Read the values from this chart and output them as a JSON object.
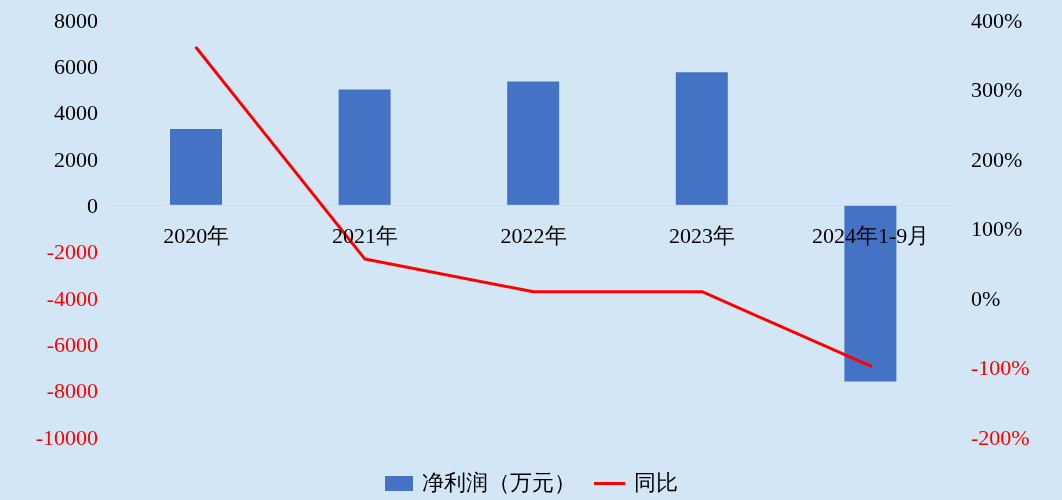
{
  "chart_data": {
    "type": "bar",
    "categories": [
      "2020年",
      "2021年",
      "2022年",
      "2023年",
      "2024年1-9月"
    ],
    "series": [
      {
        "name": "净利润（万元）",
        "color": "#4472c4",
        "values": [
          3300,
          5000,
          5350,
          5750,
          -7600
        ]
      },
      {
        "name": "同比",
        "type": "line",
        "axis": "y2",
        "color": "#ff0000",
        "values": [
          360,
          56,
          9,
          9,
          -98
        ]
      }
    ],
    "ylim": [
      -10000,
      8000
    ],
    "yticks": [
      -10000,
      -8000,
      -6000,
      -4000,
      -2000,
      0,
      2000,
      4000,
      6000,
      8000
    ],
    "y2lim": [
      -200,
      400
    ],
    "y2ticks": [
      {
        "value": -200,
        "label": "-200%"
      },
      {
        "value": -100,
        "label": "-100%"
      },
      {
        "value": 0,
        "label": "0%"
      },
      {
        "value": 100,
        "label": "100%"
      },
      {
        "value": 200,
        "label": "200%"
      },
      {
        "value": 300,
        "label": "300%"
      },
      {
        "value": 400,
        "label": "400%"
      }
    ],
    "grid": false,
    "legend": "bottom",
    "marker": "none"
  }
}
